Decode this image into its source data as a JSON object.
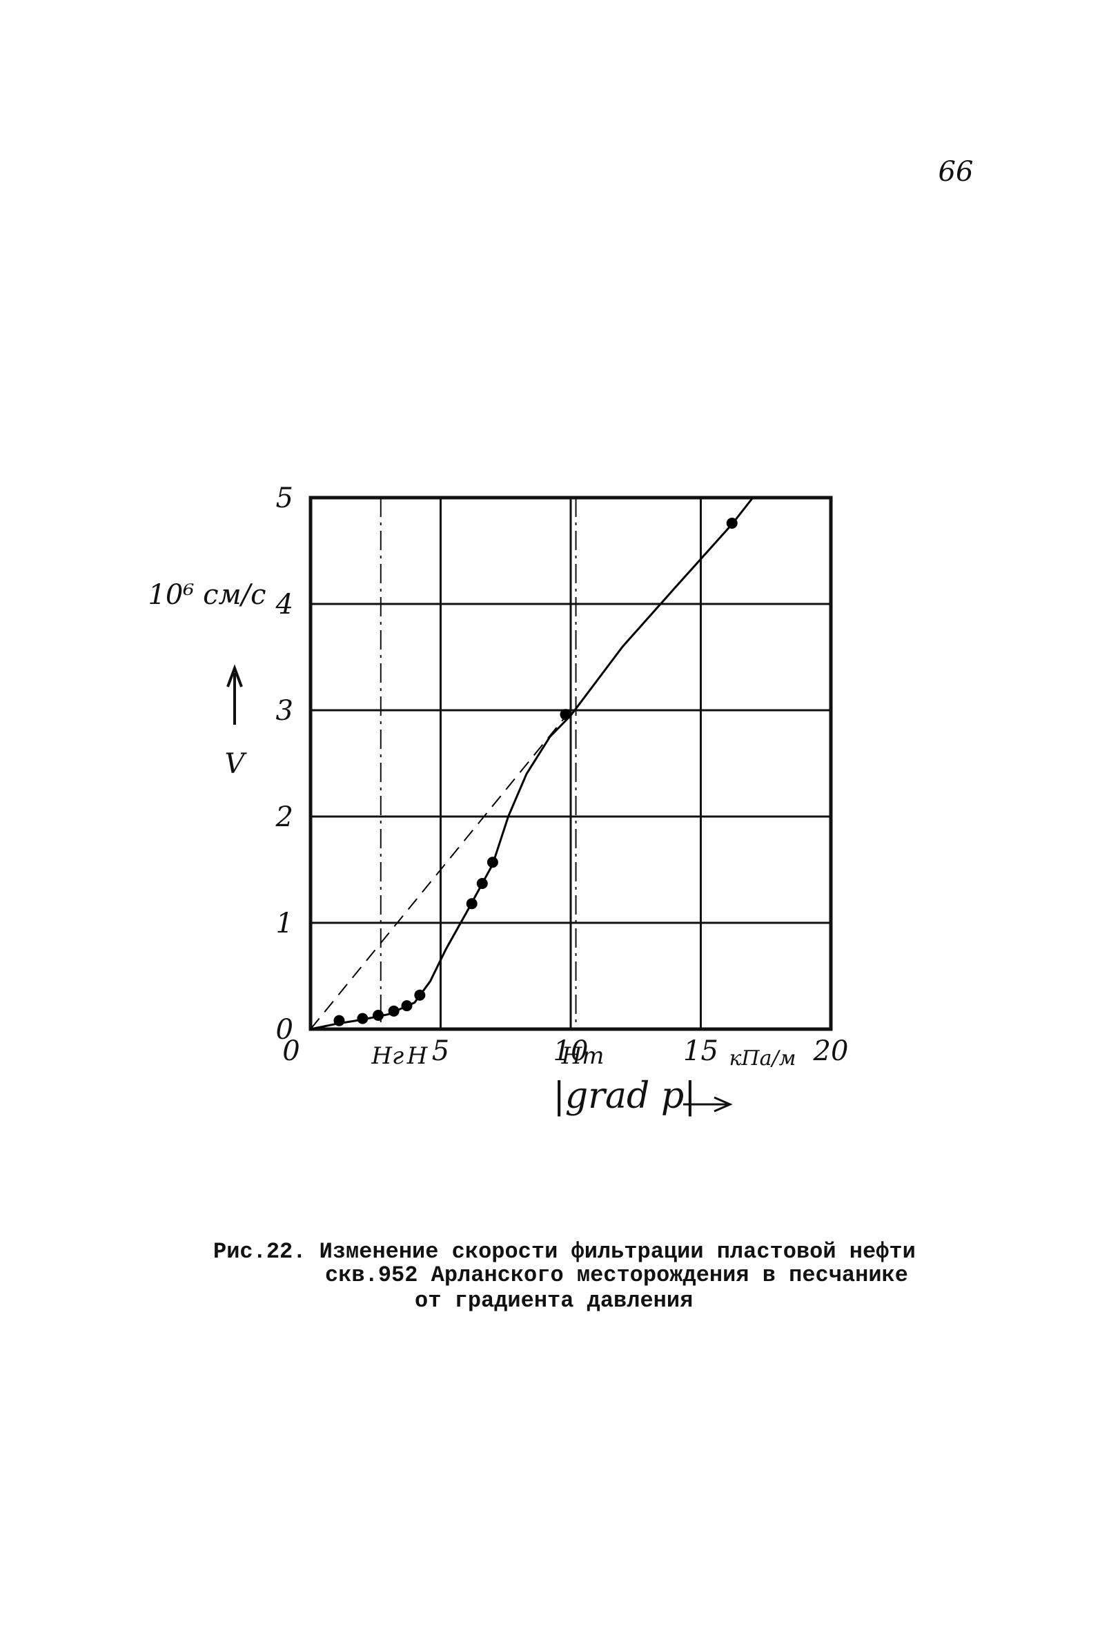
{
  "page_number": "66",
  "chart_data": {
    "type": "scatter",
    "y_unit": "10⁶ см/с",
    "y_label": "V",
    "x_label": "|grad p|",
    "x_unit": "кПа/м",
    "xlim": [
      0,
      20
    ],
    "xticks": [
      0,
      5,
      10,
      15,
      20
    ],
    "ylim": [
      0,
      5
    ],
    "yticks": [
      0,
      1,
      2,
      3,
      4,
      5
    ],
    "grid": true,
    "color": "#000000",
    "points": {
      "x": [
        1.1,
        2.0,
        2.6,
        3.2,
        3.7,
        4.2,
        6.2,
        6.6,
        7.0,
        9.8,
        16.2
      ],
      "values": [
        0.08,
        0.1,
        0.13,
        0.17,
        0.22,
        0.32,
        1.18,
        1.37,
        1.57,
        2.96,
        4.76
      ]
    },
    "curve": {
      "x": [
        0,
        1,
        2,
        3,
        4,
        4.6,
        5.2,
        6,
        7,
        7.6,
        8.3,
        9.2,
        10,
        12,
        14,
        16.2,
        17
      ],
      "values": [
        0,
        0.05,
        0.09,
        0.14,
        0.25,
        0.45,
        0.75,
        1.1,
        1.55,
        2.0,
        2.4,
        2.75,
        2.95,
        3.6,
        4.15,
        4.75,
        5
      ]
    },
    "dashed_line": {
      "x": [
        0,
        10
      ],
      "values": [
        0,
        3
      ]
    },
    "reference_lines": [
      {
        "label": "Hг",
        "x": 2.7
      },
      {
        "label": "Hm",
        "x": 10.2
      }
    ],
    "markers": [
      {
        "label": "H",
        "x": 4.1
      }
    ]
  },
  "caption": [
    "Рис.22. Изменение скорости фильтрации пластовой нефти",
    "скв.952 Арланского месторождения в песчанике",
    "от градиента давления"
  ]
}
